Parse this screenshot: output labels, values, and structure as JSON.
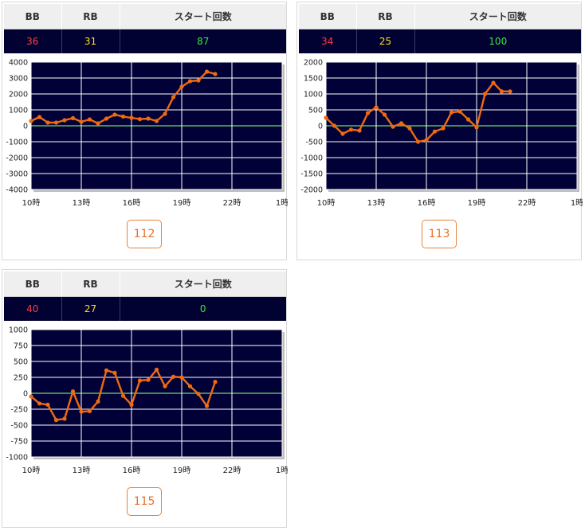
{
  "headers": {
    "bb": "BB",
    "rb": "RB",
    "starts": "スタート回数"
  },
  "colors": {
    "plot_bg": "#010137",
    "grid": "#ffffff",
    "zero_line": "#6fdc6f",
    "series": "#f06a10",
    "bb": "#ff3e3e",
    "rb": "#ffde1f",
    "starts": "#38e83c"
  },
  "machines": [
    {
      "bb": "36",
      "rb": "31",
      "starts": "87",
      "number": "112"
    },
    {
      "bb": "34",
      "rb": "25",
      "starts": "100",
      "number": "113"
    },
    {
      "bb": "40",
      "rb": "27",
      "starts": "0",
      "number": "115"
    }
  ],
  "chart_data": [
    {
      "type": "line",
      "xticks": [
        "10時",
        "13時",
        "16時",
        "19時",
        "22時",
        "1時"
      ],
      "xlim": [
        10,
        25
      ],
      "ylim": [
        -4000,
        4000
      ],
      "yticks": [
        -4000,
        -3000,
        -2000,
        -1000,
        0,
        1000,
        2000,
        3000,
        4000
      ],
      "grid": true,
      "series": [
        {
          "x": [
            10,
            10.5,
            11,
            11.5,
            12,
            12.5,
            13,
            13.5,
            14,
            14.5,
            15,
            15.5,
            16,
            16.5,
            17,
            17.5,
            18,
            18.5,
            19,
            19.5,
            20,
            20.5,
            21
          ],
          "y": [
            300,
            550,
            200,
            200,
            350,
            480,
            250,
            400,
            150,
            450,
            700,
            580,
            500,
            420,
            450,
            300,
            750,
            1800,
            2450,
            2800,
            2850,
            3400,
            3250
          ]
        }
      ]
    },
    {
      "type": "line",
      "xticks": [
        "10時",
        "13時",
        "16時",
        "19時",
        "22時",
        "1時"
      ],
      "xlim": [
        10,
        25
      ],
      "ylim": [
        -2000,
        2000
      ],
      "yticks": [
        -2000,
        -1500,
        -1000,
        -500,
        0,
        500,
        1000,
        1500,
        2000
      ],
      "grid": true,
      "series": [
        {
          "x": [
            10,
            10.5,
            11,
            11.5,
            12,
            12.5,
            13,
            13.5,
            14,
            14.5,
            15,
            15.5,
            16,
            16.5,
            17,
            17.5,
            18,
            18.5,
            19,
            19.5,
            20,
            20.5,
            21
          ],
          "y": [
            250,
            0,
            -250,
            -120,
            -150,
            400,
            580,
            350,
            -30,
            80,
            -80,
            -500,
            -450,
            -180,
            -80,
            420,
            450,
            200,
            -50,
            1000,
            1350,
            1080,
            1080
          ]
        }
      ]
    },
    {
      "type": "line",
      "xticks": [
        "10時",
        "13時",
        "16時",
        "19時",
        "22時",
        "1時"
      ],
      "xlim": [
        10,
        25
      ],
      "ylim": [
        -1000,
        1000
      ],
      "yticks": [
        -1000,
        -750,
        -500,
        -250,
        0,
        250,
        500,
        750,
        1000
      ],
      "grid": true,
      "series": [
        {
          "x": [
            10,
            10.5,
            11,
            11.5,
            12,
            12.5,
            13,
            13.5,
            14,
            14.5,
            15,
            15.5,
            16,
            16.5,
            17,
            17.5,
            18,
            18.5,
            19,
            19.5,
            20,
            20.5,
            21
          ],
          "y": [
            -50,
            -160,
            -180,
            -420,
            -400,
            30,
            -290,
            -280,
            -130,
            360,
            320,
            -40,
            -180,
            200,
            210,
            370,
            110,
            260,
            250,
            110,
            -10,
            -200,
            180
          ]
        }
      ]
    }
  ]
}
